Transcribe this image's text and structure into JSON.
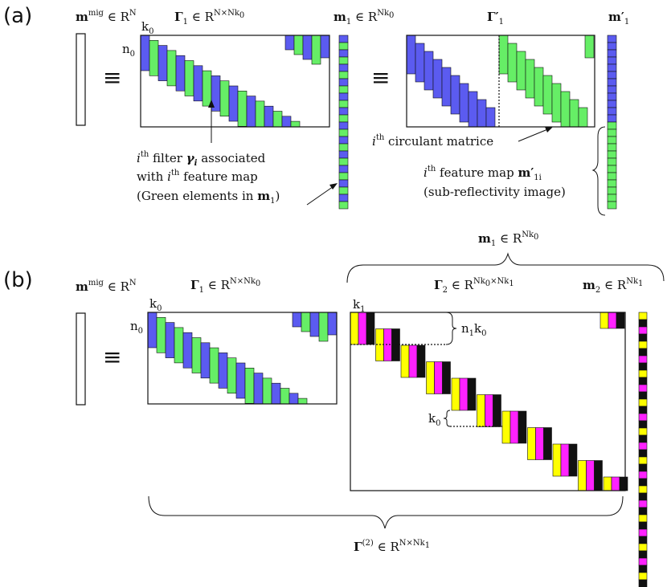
{
  "colors": {
    "blue": "#5b5bf0",
    "green": "#66ee66",
    "yellow": "#ffff00",
    "magenta": "#ff22ff",
    "black": "#111111"
  },
  "panel_a": {
    "label": "(a)",
    "m_mig": {
      "base": "m",
      "sup": "mig",
      "rel": " ∈ R",
      "sup2": "N"
    },
    "equiv": "≡",
    "gamma1": {
      "base": "Γ",
      "sub": "1",
      "rel": " ∈ R",
      "sup2": "N×Nk",
      "sub2": "0"
    },
    "m1": {
      "base": "m",
      "sub": "1",
      "rel": " ∈ R",
      "sup2": "Nk",
      "sub2": "0"
    },
    "gamma1p": {
      "base": "Γ′",
      "sub": "1"
    },
    "m1p": {
      "base": "m′",
      "sub": "1"
    },
    "k0": {
      "base": "k",
      "sub": "0"
    },
    "n0": {
      "base": "n",
      "sub": "0"
    },
    "filter_note": {
      "line1_i": "i",
      "line1_th": "th",
      "line1_a": " filter ",
      "gamma": "γ",
      "gamma_sub": "i",
      "line1_b": " associated",
      "line2_a": "with ",
      "line2_i": "i",
      "line2_th": "th",
      "line2_b": " feature map",
      "line3_a": "(Green elements in ",
      "line3_m": "m",
      "line3_sub": "1",
      "line3_b": ")"
    },
    "circulant_note": {
      "i": "i",
      "th": "th",
      "text": " circulant matrice"
    },
    "feature_note": {
      "i": "i",
      "th": "th",
      "text": " feature map ",
      "m": "m′",
      "m_sub": "1i",
      "line2": "(sub-reflectivity image)"
    }
  },
  "panel_b": {
    "label": "(b)",
    "m_mig": {
      "base": "m",
      "sup": "mig",
      "rel": " ∈ R",
      "sup2": "N"
    },
    "equiv": "≡",
    "gamma1": {
      "base": "Γ",
      "sub": "1",
      "rel": " ∈ R",
      "sup2": "N×Nk",
      "sub2": "0"
    },
    "m1_brace": {
      "base": "m",
      "sub": "1",
      "rel": " ∈ R",
      "sup2": "Nk",
      "sub2": "0"
    },
    "gamma2": {
      "base": "Γ",
      "sub": "2",
      "rel": " ∈ R",
      "sup2": "Nk",
      "sup2sub": "0",
      "sup3": "×Nk",
      "sup3sub": "1"
    },
    "m2": {
      "base": "m",
      "sub": "2",
      "rel": " ∈ R",
      "sup2": "Nk",
      "sub2": "1"
    },
    "k0": {
      "base": "k",
      "sub": "0"
    },
    "n0": {
      "base": "n",
      "sub": "0"
    },
    "k1": {
      "base": "k",
      "sub": "1"
    },
    "n1k0": {
      "a": "n",
      "a_sub": "1",
      "b": "k",
      "b_sub": "0"
    },
    "k0_inner": {
      "base": "k",
      "sub": "0"
    },
    "gamma2_total": {
      "base": "Γ",
      "sup": "(2)",
      "rel": " ∈ R",
      "sup2": "N×Nk",
      "sub2": "1"
    }
  }
}
